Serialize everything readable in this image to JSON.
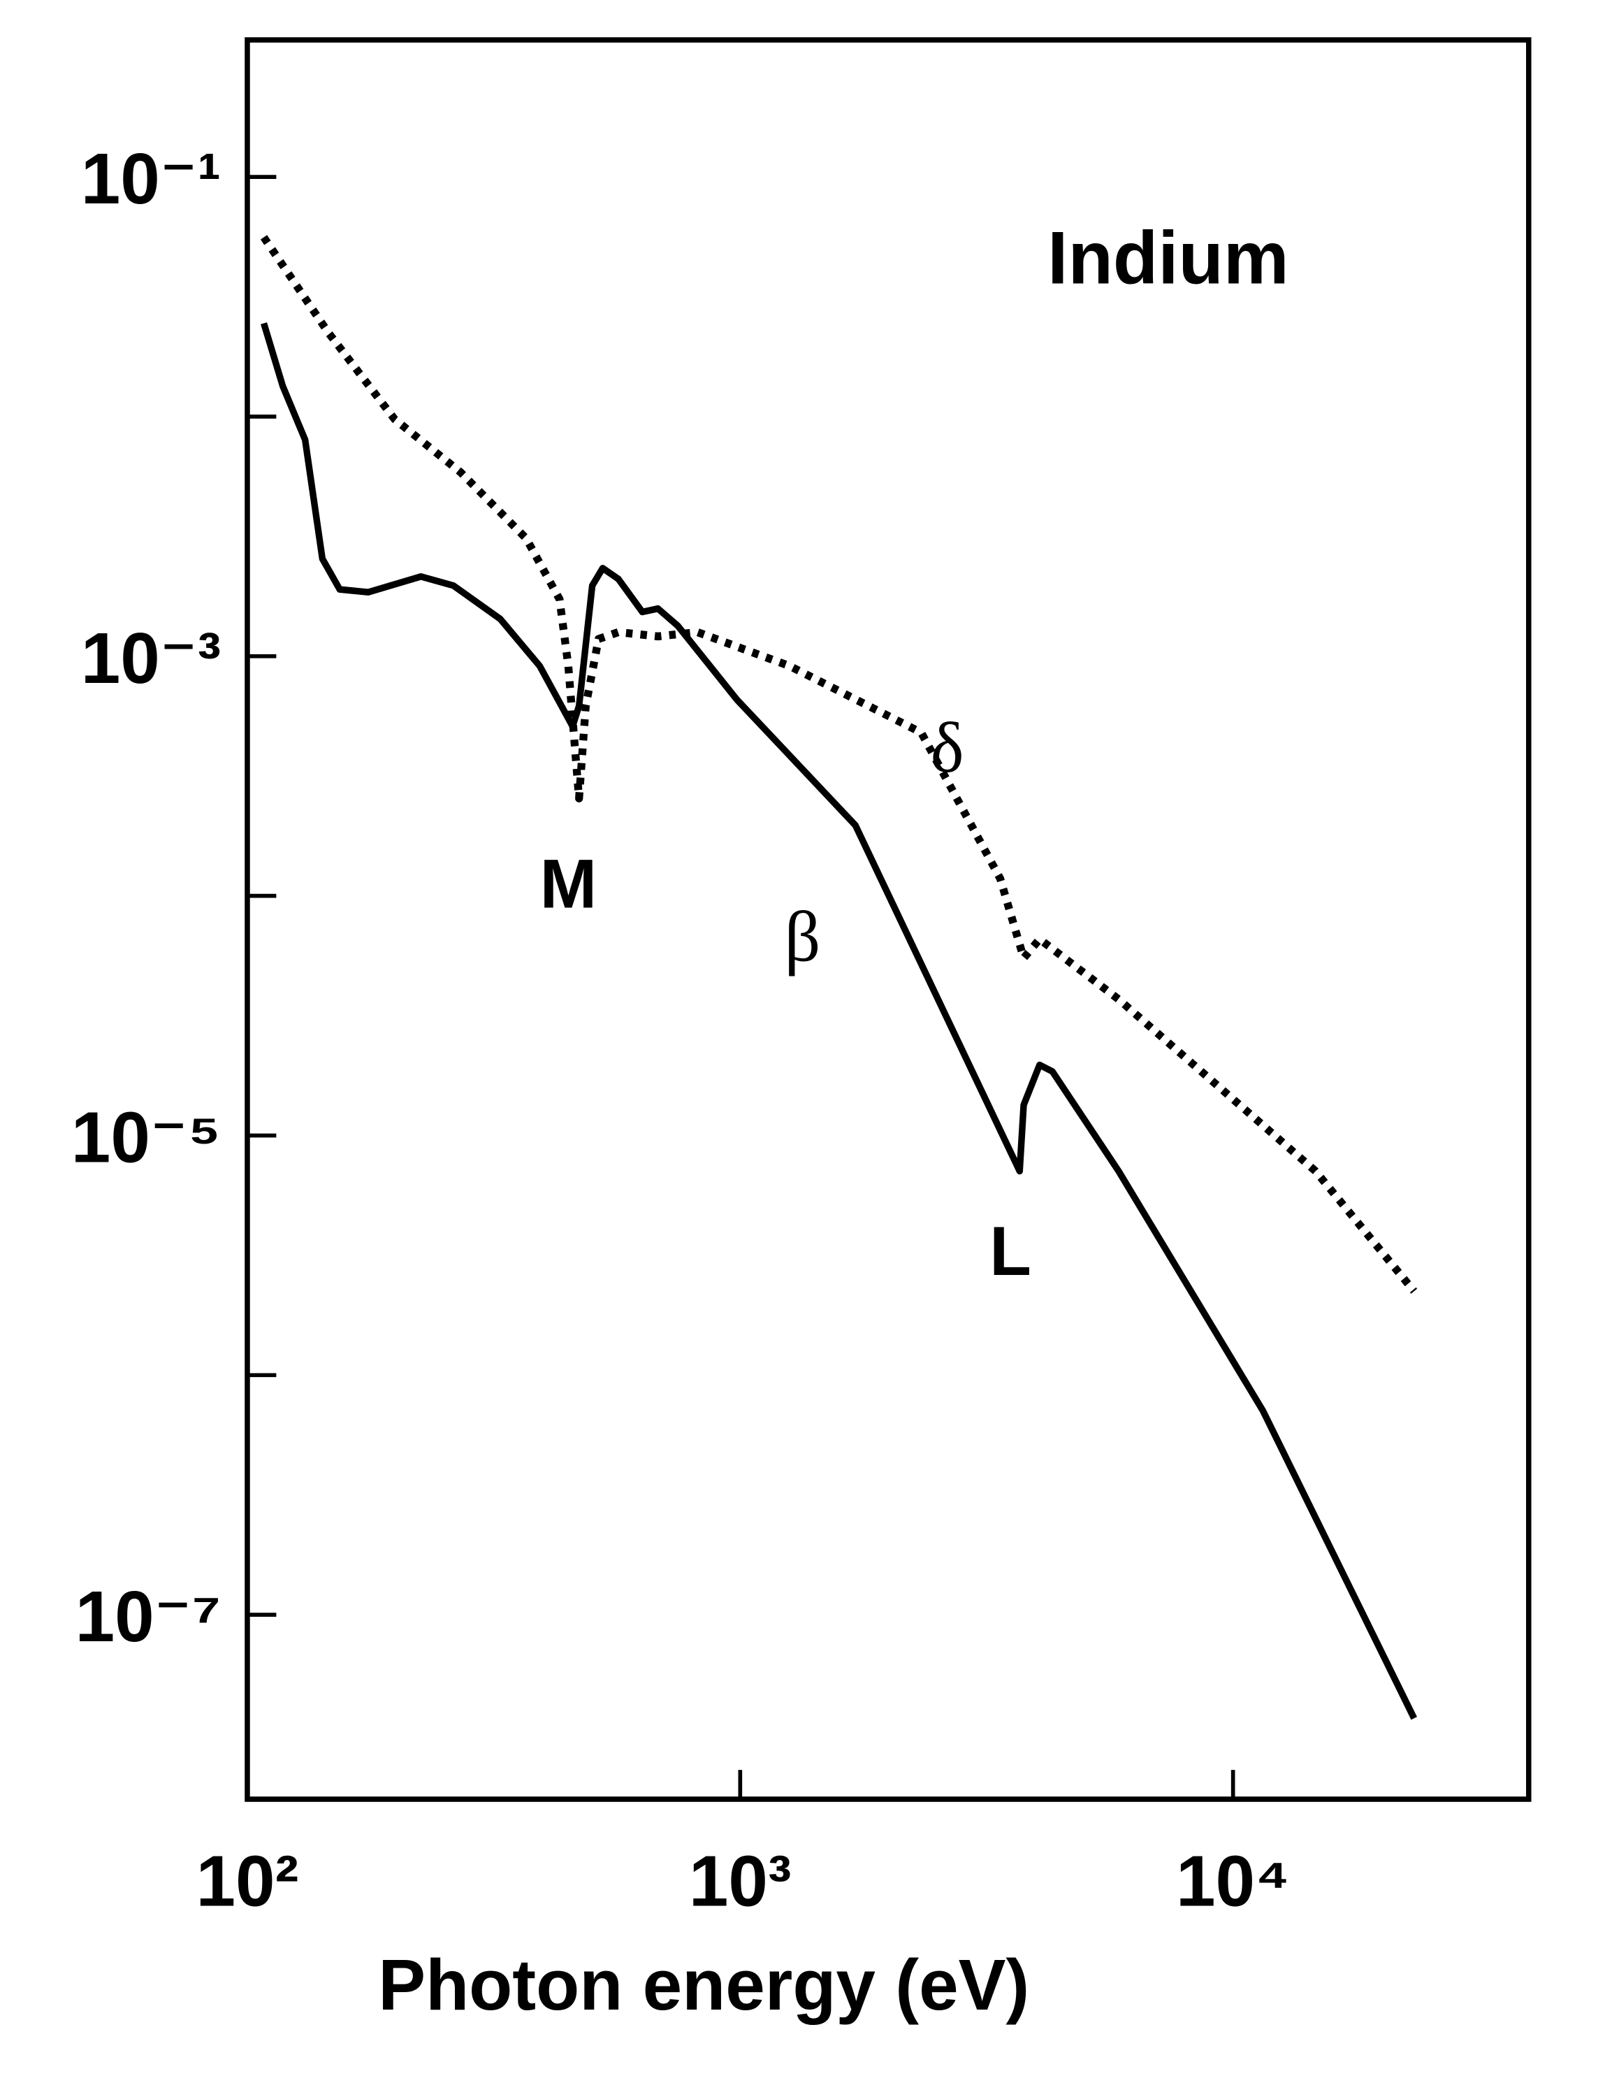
{
  "chart_data": {
    "type": "line",
    "xlabel": "Photon energy (eV)",
    "log_x": true,
    "log_y": true,
    "xlim": [
      100,
      39800
    ],
    "ylim": [
      1.7e-08,
      0.373
    ],
    "xticks": [
      {
        "value": 100,
        "label": "10²"
      },
      {
        "value": 1000,
        "label": "10³"
      },
      {
        "value": 10000,
        "label": "10⁴"
      }
    ],
    "yticks": [
      {
        "value": 0.1,
        "label": "10⁻¹"
      },
      {
        "value": 0.001,
        "label": "10⁻³"
      },
      {
        "value": 1e-05,
        "label": "10⁻⁵"
      },
      {
        "value": 1e-07,
        "label": "10⁻⁷"
      }
    ],
    "yminorticks": [
      0.01,
      0.0001,
      1e-06
    ],
    "annotations": [
      "Indium",
      "M",
      "L"
    ],
    "series": [
      {
        "name": "β",
        "color": "#000000",
        "style": "solid",
        "x": [
          108,
          118,
          131,
          142,
          154,
          176,
          225,
          262,
          326,
          392,
          457,
          471,
          501,
          526,
          566,
          633,
          681,
          747,
          984,
          1713,
          3690,
          3760,
          4050,
          4300,
          5860,
          11500,
          23300
        ],
        "values": [
          0.0245,
          0.0134,
          0.008,
          0.00255,
          0.0019,
          0.00185,
          0.00215,
          0.00197,
          0.00143,
          0.00091,
          0.00051,
          0.00062,
          0.00197,
          0.00233,
          0.0021,
          0.00153,
          0.00158,
          0.00134,
          0.00066,
          0.000197,
          7.1e-06,
          1.34e-05,
          1.97e-05,
          1.85e-05,
          7.1e-06,
          7.1e-07,
          3.7e-08
        ]
      },
      {
        "name": "δ",
        "color": "#000000",
        "style": "dotted",
        "x": [
          108,
          146,
          199,
          271,
          368,
          430,
          448,
          471,
          486,
          516,
          566,
          681,
          819,
          1260,
          2330,
          3370,
          3760,
          4050,
          5860,
          14700,
          23300
        ],
        "values": [
          0.056,
          0.0224,
          0.00975,
          0.00585,
          0.0031,
          0.00173,
          0.00091,
          0.000255,
          0.00062,
          0.00118,
          0.00126,
          0.00121,
          0.00126,
          0.00091,
          0.00048,
          0.000118,
          5.5e-05,
          6.6e-05,
          3.7e-05,
          7.1e-06,
          2.24e-06
        ]
      }
    ]
  }
}
